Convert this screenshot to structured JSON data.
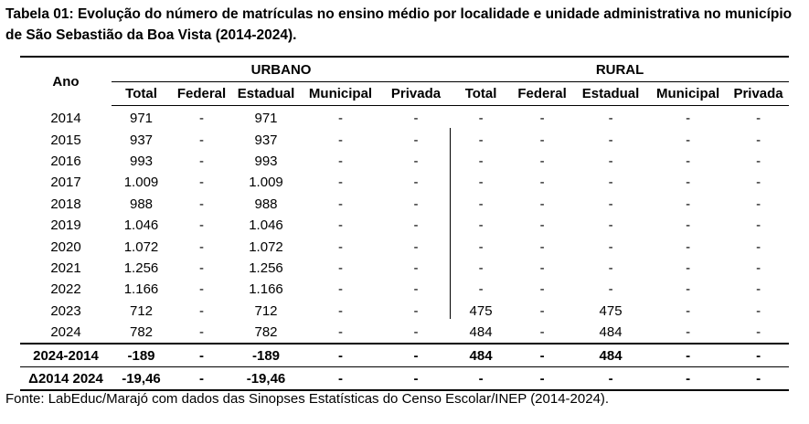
{
  "caption": "Tabela 01: Evolução do número de matrículas no ensino médio por localidade e unidade administrativa no município de São Sebastião da Boa Vista (2014-2024).",
  "header": {
    "ano": "Ano",
    "urbano": "URBANO",
    "rural": "RURAL",
    "columns": [
      "Total",
      "Federal",
      "Estadual",
      "Municipal",
      "Privada",
      "Total",
      "Federal",
      "Estadual",
      "Municipal",
      "Privada"
    ]
  },
  "rows": [
    [
      "2014",
      "971",
      "-",
      "971",
      "-",
      "-",
      "-",
      "-",
      "-",
      "-",
      "-"
    ],
    [
      "2015",
      "937",
      "-",
      "937",
      "-",
      "-",
      "-",
      "-",
      "-",
      "-",
      "-"
    ],
    [
      "2016",
      "993",
      "-",
      "993",
      "-",
      "-",
      "-",
      "-",
      "-",
      "-",
      "-"
    ],
    [
      "2017",
      "1.009",
      "-",
      "1.009",
      "-",
      "-",
      "-",
      "-",
      "-",
      "-",
      "-"
    ],
    [
      "2018",
      "988",
      "-",
      "988",
      "-",
      "-",
      "-",
      "-",
      "-",
      "-",
      "-"
    ],
    [
      "2019",
      "1.046",
      "-",
      "1.046",
      "-",
      "-",
      "-",
      "-",
      "-",
      "-",
      "-"
    ],
    [
      "2020",
      "1.072",
      "-",
      "1.072",
      "-",
      "-",
      "-",
      "-",
      "-",
      "-",
      "-"
    ],
    [
      "2021",
      "1.256",
      "-",
      "1.256",
      "-",
      "-",
      "-",
      "-",
      "-",
      "-",
      "-"
    ],
    [
      "2022",
      "1.166",
      "-",
      "1.166",
      "-",
      "-",
      "-",
      "-",
      "-",
      "-",
      "-"
    ],
    [
      "2023",
      "712",
      "-",
      "712",
      "-",
      "-",
      "475",
      "-",
      "475",
      "-",
      "-"
    ],
    [
      "2024",
      "782",
      "-",
      "782",
      "-",
      "-",
      "484",
      "-",
      "484",
      "-",
      "-"
    ]
  ],
  "summary": [
    [
      "2024-2014",
      "-189",
      "-",
      "-189",
      "-",
      "-",
      "484",
      "-",
      "484",
      "-",
      "-"
    ],
    [
      "Δ2014 2024",
      "-19,46",
      "-",
      "-19,46",
      "-",
      "-",
      "-",
      "-",
      "-",
      "-",
      "-"
    ]
  ],
  "source": "Fonte: LabEduc/Marajó com dados das Sinopses Estatísticas do Censo Escolar/INEP (2014-2024)."
}
